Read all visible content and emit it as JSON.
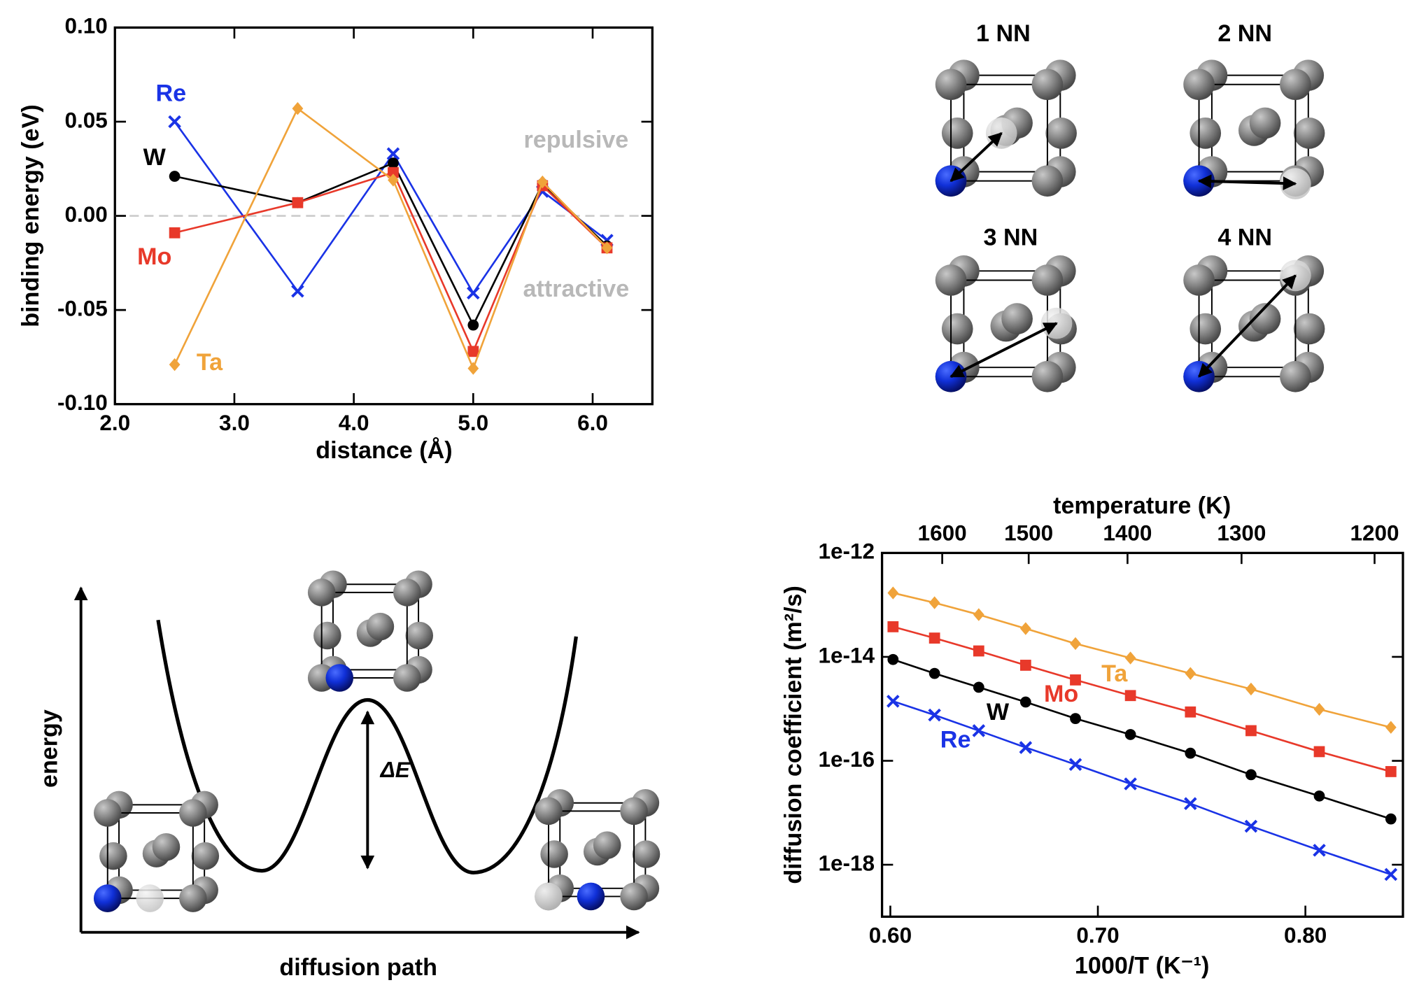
{
  "chart_data": [
    {
      "type": "line",
      "x_label": "distance (Å)",
      "y_label": "binding energy (eV)",
      "x": [
        2.5,
        3.53,
        4.33,
        5.0,
        5.58,
        6.12
      ],
      "series": [
        {
          "name": "Re",
          "color": "#1a33e6",
          "marker": "cross",
          "values": [
            0.05,
            -0.04,
            0.033,
            -0.041,
            0.013,
            -0.013
          ]
        },
        {
          "name": "W",
          "color": "#000000",
          "marker": "circle",
          "values": [
            0.021,
            0.007,
            0.028,
            -0.058,
            0.017,
            -0.016
          ]
        },
        {
          "name": "Mo",
          "color": "#e8392a",
          "marker": "square",
          "values": [
            -0.009,
            0.007,
            0.023,
            -0.072,
            0.016,
            -0.017
          ]
        },
        {
          "name": "Ta",
          "color": "#f0a33a",
          "marker": "diamond",
          "values": [
            -0.079,
            0.057,
            0.019,
            -0.081,
            0.018,
            -0.017
          ]
        }
      ],
      "xlim": [
        2.0,
        6.5
      ],
      "xticks": [
        {
          "value": 2,
          "label": "2.0"
        },
        {
          "value": 3,
          "label": "3.0"
        },
        {
          "value": 4,
          "label": "4.0"
        },
        {
          "value": 5,
          "label": "5.0"
        },
        {
          "value": 6,
          "label": "6.0"
        }
      ],
      "ylim": [
        -0.1,
        0.1
      ],
      "yticks": [
        {
          "value": -0.1,
          "label": "-0.10"
        },
        {
          "value": -0.05,
          "label": "-0.05"
        },
        {
          "value": 0,
          "label": "0.00"
        },
        {
          "value": 0.05,
          "label": "0.05"
        },
        {
          "value": 0.1,
          "label": "0.10"
        }
      ],
      "reference_line": 0,
      "annotations": [
        "repulsive",
        "attractive"
      ]
    },
    {
      "type": "line",
      "yscale": "log",
      "x_label": "1000/T (K⁻¹)",
      "x2_label": "temperature (K)",
      "y_label": "diffusion coefficient (m²/s)",
      "x": [
        0.6013,
        0.6213,
        0.6426,
        0.6652,
        0.6892,
        0.7157,
        0.7446,
        0.7738,
        0.8067,
        0.8412
      ],
      "series": [
        {
          "name": "Ta",
          "color": "#f0a33a",
          "marker": "diamond",
          "values": [
            1.7e-13,
            1.1e-13,
            6.5e-14,
            3.5e-14,
            1.8e-14,
            9.5e-15,
            4.8e-15,
            2.4e-15,
            9.8e-16,
            4.4e-16
          ]
        },
        {
          "name": "Mo",
          "color": "#e8392a",
          "marker": "square",
          "values": [
            3.8e-14,
            2.3e-14,
            1.3e-14,
            6.9e-15,
            3.6e-15,
            1.8e-15,
            8.7e-16,
            3.8e-16,
            1.5e-16,
            6.2e-17
          ]
        },
        {
          "name": "W",
          "color": "#000000",
          "marker": "circle",
          "values": [
            8.9e-15,
            4.8e-15,
            2.6e-15,
            1.35e-15,
            6.5e-16,
            3.2e-16,
            1.4e-16,
            5.4e-17,
            2.1e-17,
            7.6e-18
          ]
        },
        {
          "name": "Re",
          "color": "#1a33e6",
          "marker": "cross",
          "values": [
            1.4e-15,
            7.6e-16,
            3.8e-16,
            1.8e-16,
            8.5e-17,
            3.6e-17,
            1.5e-17,
            5.5e-18,
            1.9e-18,
            6.5e-19
          ]
        }
      ],
      "xlim": [
        0.596,
        0.847
      ],
      "xticks": [
        {
          "value": 0.6,
          "label": "0.60"
        },
        {
          "value": 0.7,
          "label": "0.70"
        },
        {
          "value": 0.8,
          "label": "0.80"
        }
      ],
      "x2ticks": [
        1600,
        1500,
        1400,
        1300,
        1200
      ],
      "ylim": [
        1e-19,
        1e-12
      ],
      "yticks": [
        {
          "value": 1e-18,
          "label": "1e-18"
        },
        {
          "value": 1e-16,
          "label": "1e-16"
        },
        {
          "value": 1e-14,
          "label": "1e-14"
        },
        {
          "value": 1e-12,
          "label": "1e-12"
        }
      ]
    }
  ],
  "neighbor_diagram": {
    "labels": [
      "1 NN",
      "2 NN",
      "3 NN",
      "4 NN"
    ]
  },
  "energy_diagram": {
    "y_label": "energy",
    "x_label": "diffusion path",
    "barrier_label": "ΔE"
  }
}
